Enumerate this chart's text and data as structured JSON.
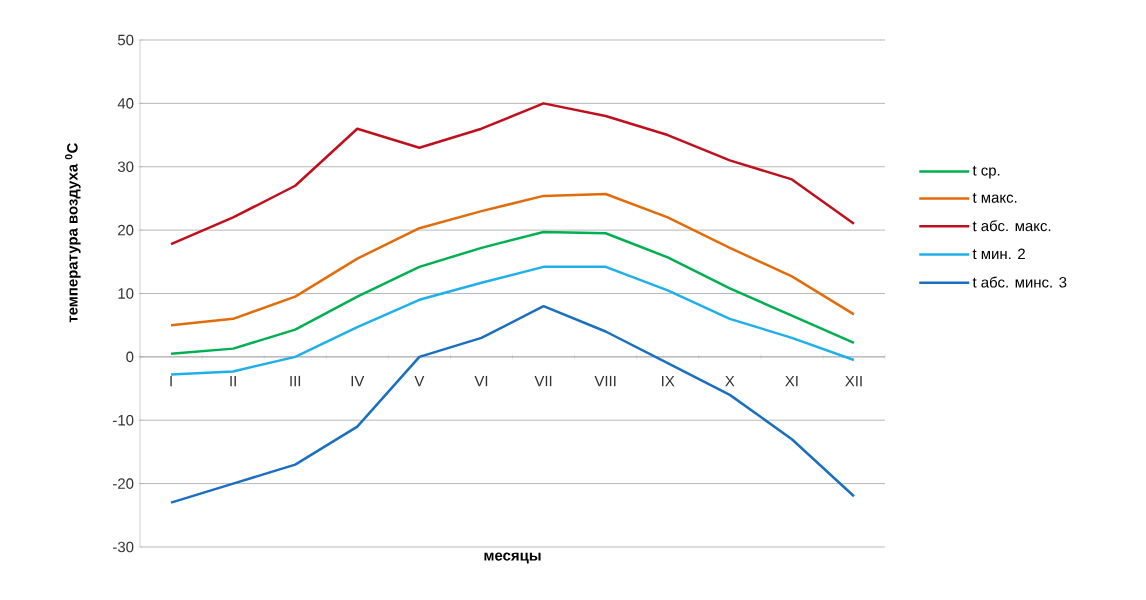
{
  "chart_data": {
    "type": "line",
    "xlabel": "месяцы",
    "ylabel": "температура воздуха $^{0}$C",
    "categories": [
      "I",
      "II",
      "III",
      "IV",
      "V",
      "VI",
      "VII",
      "VIII",
      "IX",
      "X",
      "XI",
      "XII"
    ],
    "series": [
      {
        "name": "t ср.",
        "color": "#00b050",
        "values": [
          0.5,
          1.3,
          4.3,
          9.5,
          14.2,
          17.2,
          19.7,
          19.5,
          15.7,
          10.8,
          6.5,
          2.2
        ]
      },
      {
        "name": "t макс.",
        "color": "#e36c0a",
        "values": [
          5,
          6,
          9.5,
          15.5,
          20.3,
          23,
          25.4,
          25.7,
          22,
          17.2,
          12.7,
          6.7
        ]
      },
      {
        "name": "t абс. макс.",
        "color": "#c0101e",
        "values": [
          17.8,
          22,
          27,
          36,
          33,
          36,
          40,
          38,
          35,
          31,
          28,
          21
        ]
      },
      {
        "name": "t мин. 2",
        "color": "#1fb0ea",
        "values": [
          -2.8,
          -2.3,
          0,
          4.7,
          9,
          11.7,
          14.2,
          14.2,
          10.5,
          6,
          3,
          -0.5
        ]
      },
      {
        "name": "t абс. минс. 3",
        "color": "#1a6fc0",
        "values": [
          -23,
          -20,
          -17,
          -11,
          0,
          3,
          8,
          4,
          -1,
          -6,
          -13,
          -22
        ]
      }
    ],
    "ylim": [
      -30,
      50
    ],
    "yticks": [
      -30,
      -20,
      -10,
      0,
      10,
      20,
      30,
      40,
      50
    ],
    "grid": "y",
    "legend": "right",
    "marker": "none",
    "line_style": "solid"
  }
}
